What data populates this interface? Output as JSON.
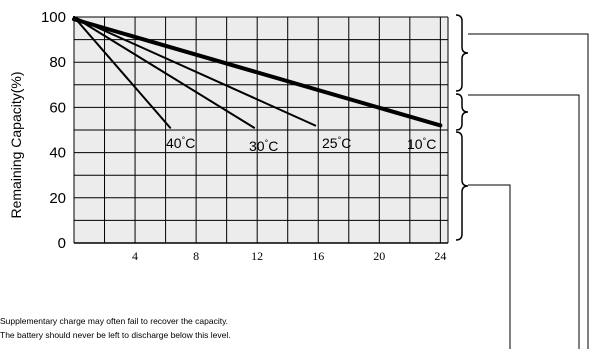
{
  "chart_data": {
    "type": "line",
    "ylabel": "Remaining Capacity(%)",
    "xlabel": "",
    "xlim": [
      0,
      24.5
    ],
    "ylim": [
      0,
      100
    ],
    "x_ticks": [
      4,
      8,
      12,
      16,
      20,
      24
    ],
    "y_ticks": [
      0,
      20,
      40,
      60,
      80,
      100
    ],
    "grid": true,
    "threshold": 50,
    "series": [
      {
        "name": "40°C",
        "temp": "40",
        "x": [
          0,
          6.3
        ],
        "y": [
          100,
          51
        ]
      },
      {
        "name": "30°C",
        "temp": "30",
        "x": [
          0,
          11.8
        ],
        "y": [
          100,
          51
        ]
      },
      {
        "name": "25°C",
        "temp": "25",
        "x": [
          0,
          15.8
        ],
        "y": [
          100,
          52
        ]
      },
      {
        "name": "10°C",
        "temp": "10",
        "x": [
          0,
          24
        ],
        "y": [
          99,
          52
        ]
      }
    ],
    "annotations": [
      "Supplementary charge may often fail to recover the capacity.",
      "The battery should never be left to discharge below this level."
    ]
  }
}
